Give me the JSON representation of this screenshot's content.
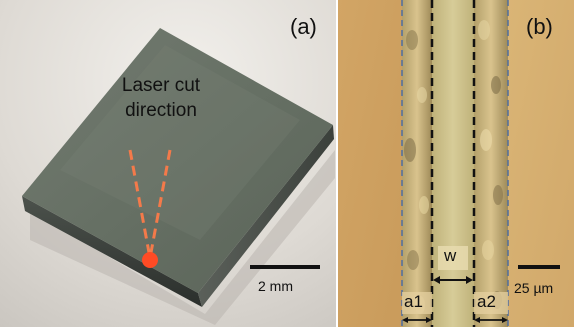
{
  "panel_a": {
    "label": "(a)",
    "annotation_line1": "Laser cut",
    "annotation_line2": "direction",
    "scale_label": "2 mm",
    "colors": {
      "sample": "#667064",
      "background": "#dedad4",
      "marker": "#ff4b25"
    }
  },
  "panel_b": {
    "label": "(b)",
    "width_label": "w",
    "a1_label": "a1",
    "a2_label": "a2",
    "scale_label": "25 µm",
    "colors": {
      "substrate": "#d5ab69",
      "groove": "#c6b880",
      "edge_guides": "#4f6ea0"
    }
  }
}
